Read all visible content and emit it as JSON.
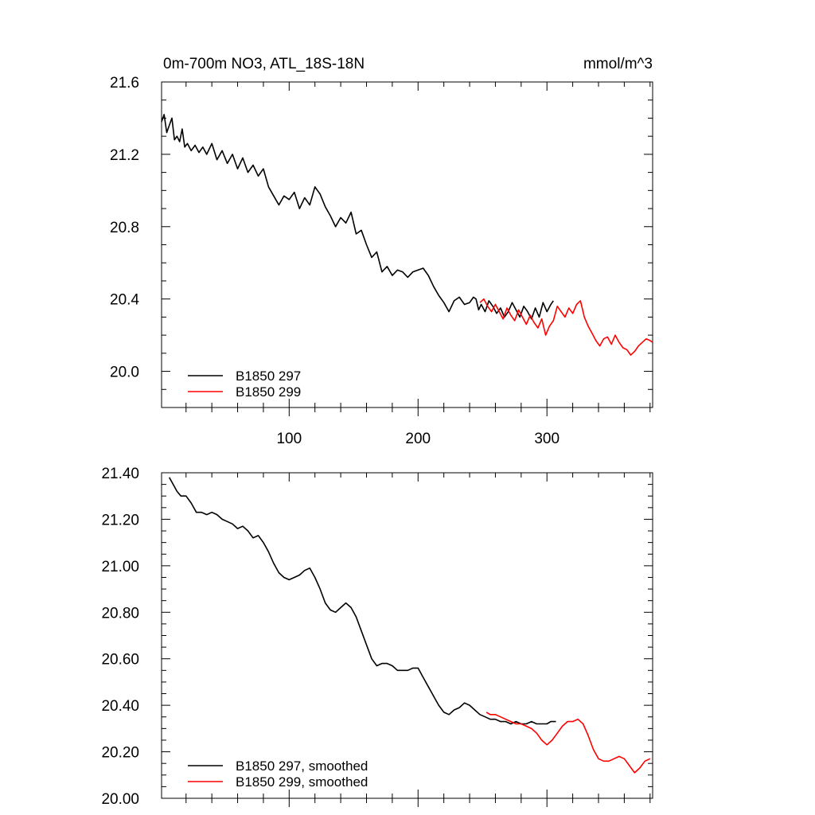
{
  "chart_data": [
    {
      "type": "line",
      "title": "0m-700m NO3, ATL_18S-18N",
      "units": "mmol/m^3",
      "xlabel": "",
      "ylabel": "",
      "xlim": [
        1,
        382
      ],
      "ylim": [
        19.8,
        21.6
      ],
      "x_ticks": [
        100,
        200,
        300
      ],
      "x_tick_labels": [
        "100",
        "200",
        "300"
      ],
      "y_ticks": [
        20.0,
        20.4,
        20.8,
        21.2,
        21.6
      ],
      "y_tick_labels": [
        "20.0",
        "20.4",
        "20.8",
        "21.2",
        "21.6"
      ],
      "grid": false,
      "legend_position": "bottom-left",
      "series": [
        {
          "name": "B1850 297",
          "color": "#000000",
          "x": [
            1,
            3,
            5,
            7,
            9,
            11,
            13,
            15,
            17,
            19,
            21,
            24,
            27,
            30,
            33,
            36,
            40,
            44,
            48,
            52,
            56,
            60,
            64,
            68,
            72,
            76,
            80,
            84,
            88,
            92,
            96,
            100,
            104,
            108,
            112,
            116,
            120,
            124,
            128,
            132,
            136,
            140,
            144,
            148,
            152,
            156,
            160,
            164,
            168,
            172,
            176,
            180,
            184,
            188,
            192,
            196,
            200,
            204,
            208,
            212,
            216,
            220,
            224,
            228,
            232,
            236,
            240,
            243,
            245,
            247,
            249,
            252,
            255,
            258,
            261,
            264,
            267,
            270,
            273,
            276,
            279,
            282,
            285,
            288,
            291,
            294,
            297,
            300,
            303,
            305
          ],
          "values": [
            21.38,
            21.42,
            21.32,
            21.36,
            21.4,
            21.28,
            21.3,
            21.27,
            21.34,
            21.24,
            21.26,
            21.22,
            21.25,
            21.21,
            21.24,
            21.2,
            21.26,
            21.17,
            21.22,
            21.15,
            21.2,
            21.12,
            21.18,
            21.1,
            21.14,
            21.08,
            21.12,
            21.02,
            20.97,
            20.92,
            20.97,
            20.95,
            20.99,
            20.9,
            20.96,
            20.92,
            21.02,
            20.98,
            20.91,
            20.86,
            20.8,
            20.85,
            20.82,
            20.88,
            20.76,
            20.78,
            20.7,
            20.63,
            20.66,
            20.55,
            20.58,
            20.53,
            20.56,
            20.55,
            20.52,
            20.55,
            20.56,
            20.57,
            20.53,
            20.47,
            20.42,
            20.38,
            20.33,
            20.39,
            20.41,
            20.37,
            20.38,
            20.41,
            20.4,
            20.34,
            20.37,
            20.33,
            20.39,
            20.36,
            20.32,
            20.35,
            20.3,
            20.33,
            20.38,
            20.34,
            20.3,
            20.36,
            20.33,
            20.29,
            20.35,
            20.3,
            20.38,
            20.33,
            20.37,
            20.39
          ]
        },
        {
          "name": "B1850 299",
          "color": "#ff0000",
          "x": [
            248,
            251,
            254,
            257,
            260,
            263,
            266,
            269,
            272,
            275,
            278,
            281,
            284,
            287,
            290,
            293,
            296,
            299,
            302,
            305,
            308,
            311,
            314,
            317,
            320,
            323,
            326,
            329,
            332,
            335,
            338,
            341,
            344,
            347,
            350,
            353,
            356,
            359,
            362,
            365,
            368,
            371,
            374,
            377,
            380,
            382
          ],
          "values": [
            20.38,
            20.4,
            20.36,
            20.33,
            20.37,
            20.33,
            20.29,
            20.35,
            20.31,
            20.28,
            20.34,
            20.3,
            20.26,
            20.31,
            20.27,
            20.24,
            20.29,
            20.2,
            20.25,
            20.28,
            20.36,
            20.33,
            20.3,
            20.35,
            20.32,
            20.37,
            20.39,
            20.3,
            20.25,
            20.21,
            20.17,
            20.14,
            20.18,
            20.19,
            20.15,
            20.2,
            20.16,
            20.13,
            20.12,
            20.09,
            20.11,
            20.14,
            20.16,
            20.18,
            20.17,
            20.16
          ]
        }
      ]
    },
    {
      "type": "line",
      "title": "",
      "xlabel": "",
      "ylabel": "",
      "xlim": [
        1,
        382
      ],
      "ylim": [
        20.0,
        21.4
      ],
      "x_ticks": [
        100,
        200,
        300
      ],
      "x_tick_labels": [],
      "y_ticks": [
        20.0,
        20.2,
        20.4,
        20.6,
        20.8,
        21.0,
        21.2,
        21.4
      ],
      "y_tick_labels": [
        "20.00",
        "20.20",
        "20.40",
        "20.60",
        "20.80",
        "21.00",
        "21.20",
        "21.40"
      ],
      "grid": false,
      "legend_position": "bottom-left",
      "series": [
        {
          "name": "B1850 297, smoothed",
          "color": "#000000",
          "x": [
            7,
            10,
            13,
            16,
            20,
            24,
            28,
            32,
            36,
            40,
            44,
            48,
            52,
            56,
            60,
            64,
            68,
            72,
            76,
            80,
            84,
            88,
            92,
            96,
            100,
            104,
            108,
            112,
            116,
            120,
            124,
            128,
            132,
            136,
            140,
            144,
            148,
            152,
            156,
            160,
            164,
            168,
            172,
            176,
            180,
            184,
            188,
            192,
            196,
            200,
            204,
            208,
            212,
            216,
            220,
            224,
            228,
            232,
            236,
            240,
            244,
            248,
            252,
            256,
            260,
            264,
            268,
            272,
            276,
            280,
            284,
            288,
            292,
            296,
            300,
            303,
            307
          ],
          "values": [
            21.38,
            21.35,
            21.32,
            21.3,
            21.3,
            21.27,
            21.23,
            21.23,
            21.22,
            21.23,
            21.22,
            21.2,
            21.19,
            21.18,
            21.16,
            21.17,
            21.15,
            21.12,
            21.13,
            21.1,
            21.06,
            21.01,
            20.97,
            20.95,
            20.94,
            20.95,
            20.96,
            20.98,
            20.99,
            20.95,
            20.9,
            20.84,
            20.81,
            20.8,
            20.82,
            20.84,
            20.82,
            20.78,
            20.72,
            20.66,
            20.6,
            20.57,
            20.58,
            20.58,
            20.57,
            20.55,
            20.55,
            20.55,
            20.56,
            20.56,
            20.52,
            20.48,
            20.44,
            20.4,
            20.37,
            20.36,
            20.38,
            20.39,
            20.41,
            20.4,
            20.38,
            20.36,
            20.35,
            20.34,
            20.34,
            20.33,
            20.33,
            20.32,
            20.33,
            20.32,
            20.32,
            20.33,
            20.32,
            20.32,
            20.32,
            20.33,
            20.33
          ]
        },
        {
          "name": "B1850 299, smoothed",
          "color": "#ff0000",
          "x": [
            253,
            256,
            260,
            264,
            268,
            272,
            276,
            280,
            284,
            288,
            292,
            296,
            300,
            304,
            308,
            312,
            316,
            320,
            324,
            328,
            332,
            336,
            340,
            344,
            348,
            352,
            356,
            360,
            364,
            368,
            372,
            376,
            380
          ],
          "values": [
            20.37,
            20.36,
            20.36,
            20.35,
            20.34,
            20.33,
            20.32,
            20.32,
            20.31,
            20.3,
            20.28,
            20.25,
            20.23,
            20.25,
            20.28,
            20.31,
            20.33,
            20.33,
            20.34,
            20.32,
            20.27,
            20.21,
            20.17,
            20.16,
            20.16,
            20.17,
            20.18,
            20.17,
            20.14,
            20.11,
            20.13,
            20.16,
            20.17
          ]
        }
      ]
    }
  ]
}
